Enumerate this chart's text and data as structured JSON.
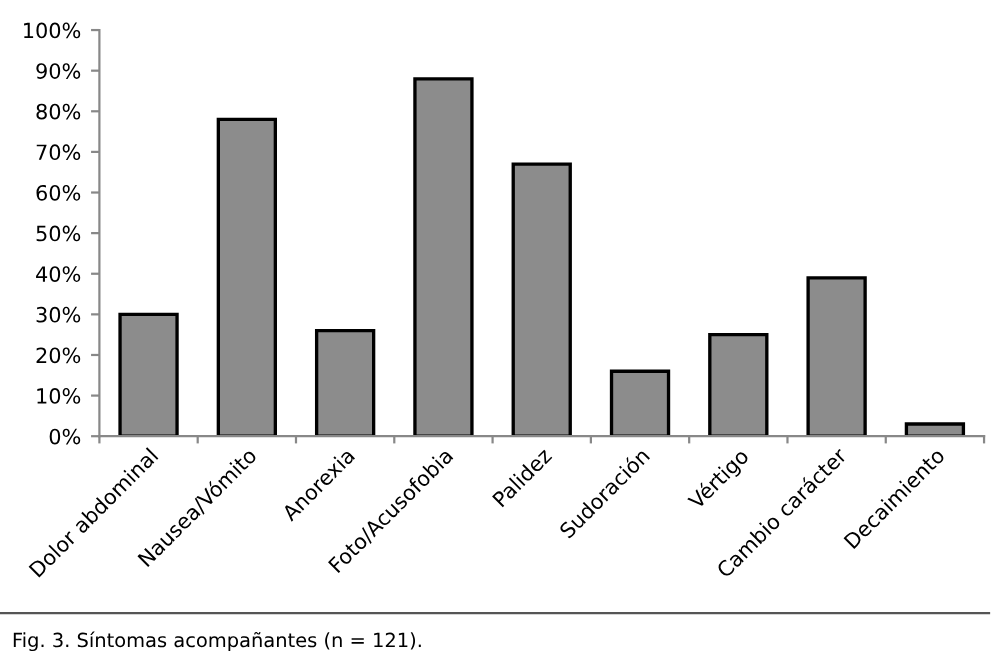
{
  "chart_data": {
    "type": "bar",
    "categories": [
      "Dolor abdominal",
      "Nausea/Vómito",
      "Anorexia",
      "Foto/Acusofobia",
      "Palidez",
      "Sudoración",
      "Vértigo",
      "Cambio carácter",
      "Decaimiento"
    ],
    "values": [
      30,
      78,
      26,
      88,
      67,
      16,
      25,
      39,
      3
    ],
    "color": "#8c8c8c",
    "ylim": [
      0,
      100
    ],
    "yticks": [
      {
        "value": 0,
        "label": "0%"
      },
      {
        "value": 10,
        "label": "10%"
      },
      {
        "value": 20,
        "label": "20%"
      },
      {
        "value": 30,
        "label": "30%"
      },
      {
        "value": 40,
        "label": "40%"
      },
      {
        "value": 50,
        "label": "50%"
      },
      {
        "value": 60,
        "label": "60%"
      },
      {
        "value": 70,
        "label": "70%"
      },
      {
        "value": 80,
        "label": "80%"
      },
      {
        "value": 90,
        "label": "90%"
      },
      {
        "value": 100,
        "label": "100%"
      }
    ],
    "grid": false,
    "legend": false,
    "annotations": [
      "Fig. 3. Síntomas acompañantes (n = 121)."
    ]
  }
}
